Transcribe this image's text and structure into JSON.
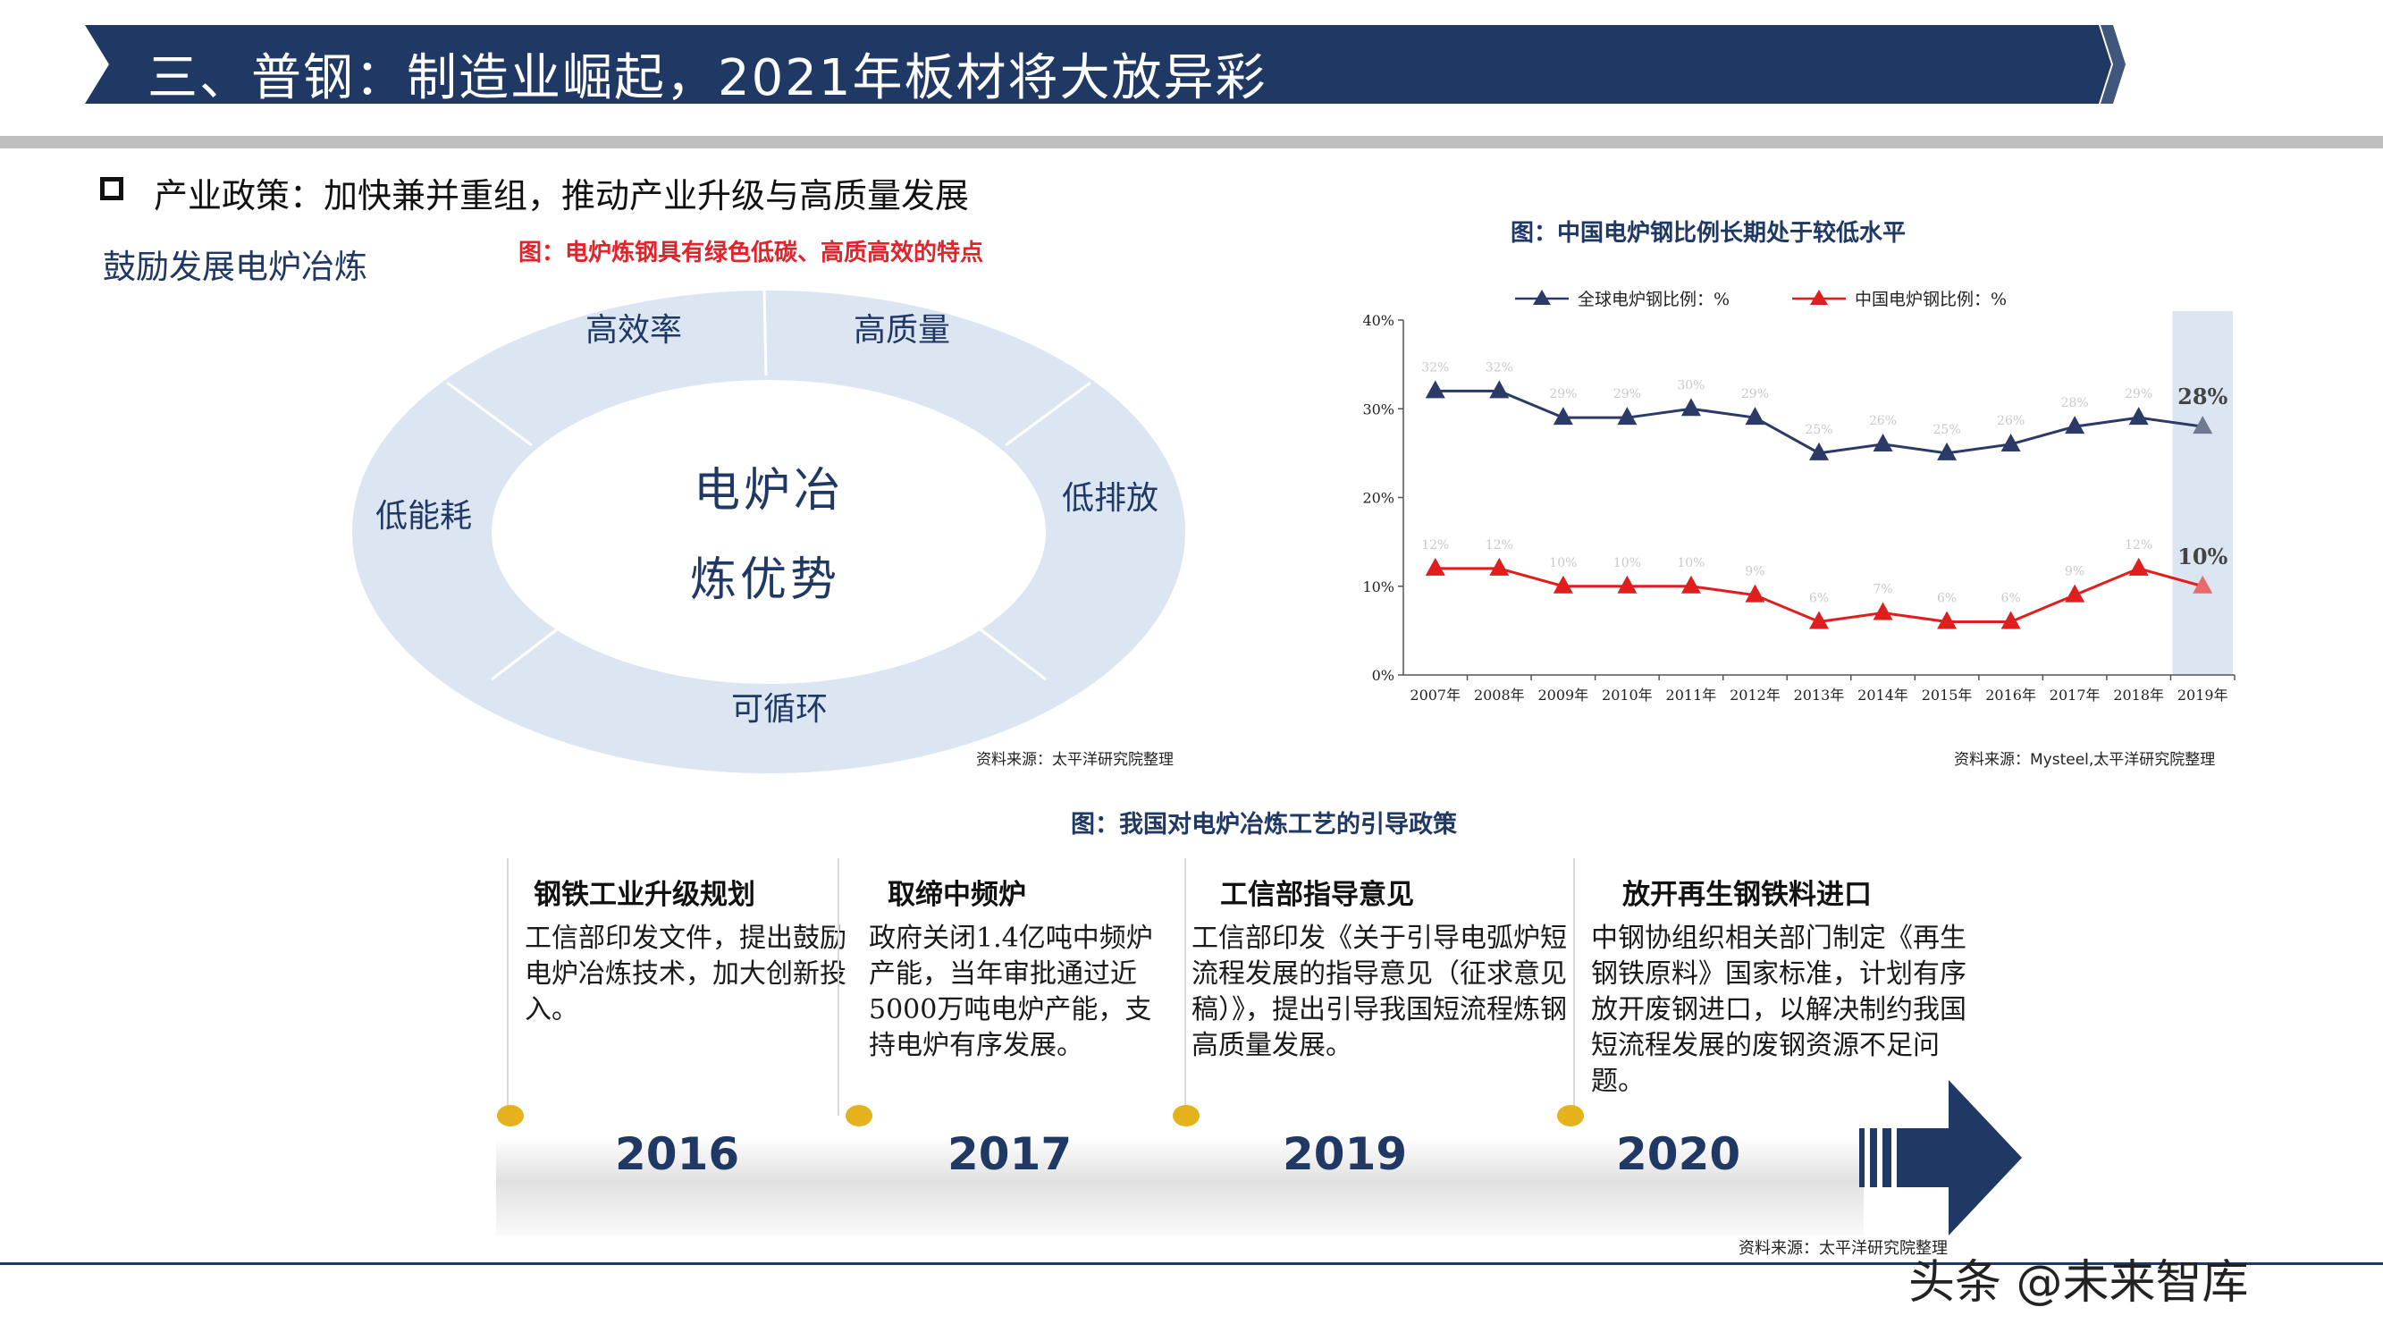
{
  "header": {
    "title": "三、普钢：制造业崛起，2021年板材将大放异彩"
  },
  "subtitle": "产业政策：加快兼并重组，推动产业升级与高质量发展",
  "left_panel": {
    "heading": "鼓励发展电炉冶炼",
    "caption": "图：电炉炼钢具有绿色低碳、高质高效的特点",
    "ring_labels": {
      "top_left": "高效率",
      "top_right": "高质量",
      "right": "低排放",
      "bottom": "可循环",
      "left": "低能耗"
    },
    "center_line1": "电炉冶",
    "center_line2": "炼优势",
    "source": "资料来源：太平洋研究院整理"
  },
  "right_panel": {
    "caption": "图：中国电炉钢比例长期处于较低水平",
    "source": "资料来源：Mysteel,太平洋研究院整理"
  },
  "chart_data": {
    "type": "line",
    "categories": [
      "2007年",
      "2008年",
      "2009年",
      "2010年",
      "2011年",
      "2012年",
      "2013年",
      "2014年",
      "2015年",
      "2016年",
      "2017年",
      "2018年",
      "2019年"
    ],
    "series": [
      {
        "name": "全球电炉钢比例：%",
        "values": [
          32,
          32,
          29,
          29,
          30,
          29,
          25,
          26,
          25,
          26,
          28,
          29,
          28
        ],
        "labels": [
          "32%",
          "32%",
          "29%",
          "29%",
          "30%",
          "29%",
          "25%",
          "26%",
          "25%",
          "26%",
          "28%",
          "29%",
          "28%"
        ],
        "color": "#2b3a67"
      },
      {
        "name": "中国电炉钢比例：%",
        "values": [
          12,
          12,
          10,
          10,
          10,
          9,
          6,
          7,
          6,
          6,
          9,
          12,
          10
        ],
        "labels": [
          "12%",
          "12%",
          "10%",
          "10%",
          "10%",
          "9%",
          "6%",
          "7%",
          "6%",
          "6%",
          "9%",
          "12%",
          "10%"
        ],
        "color": "#e01e1e"
      }
    ],
    "ylim": [
      0,
      40
    ],
    "yticks": [
      "0%",
      "10%",
      "20%",
      "30%",
      "40%"
    ],
    "highlight_category": "2019年",
    "grid": false,
    "legend": "top"
  },
  "timeline": {
    "caption": "图：我国对电炉冶炼工艺的引导政策",
    "events": [
      {
        "year": "2016",
        "title": "钢铁工业升级规划",
        "text": "工信部印发文件，提出鼓励电炉冶炼技术，加大创新投入。"
      },
      {
        "year": "2017",
        "title": "取缔中频炉",
        "text": "政府关闭1.4亿吨中频炉产能，当年审批通过近5000万吨电炉产能，支持电炉有序发展。"
      },
      {
        "year": "2019",
        "title": "工信部指导意见",
        "text": "工信部印发《关于引导电弧炉短流程发展的指导意见（征求意见稿）》，提出引导我国短流程炼钢高质量发展。"
      },
      {
        "year": "2020",
        "title": "放开再生钢铁料进口",
        "text": "中钢协组织相关部门制定《再生钢铁原料》国家标准，计划有序放开废钢进口，以解决制约我国短流程发展的废钢资源不足问题。"
      }
    ],
    "source": "资料来源：太平洋研究院整理"
  },
  "watermark": "头条 @未来智库",
  "colors": {
    "navy": "#1f3864",
    "red": "#e01e1e",
    "ring": "#dce6f2",
    "gold": "#e3b21c"
  }
}
